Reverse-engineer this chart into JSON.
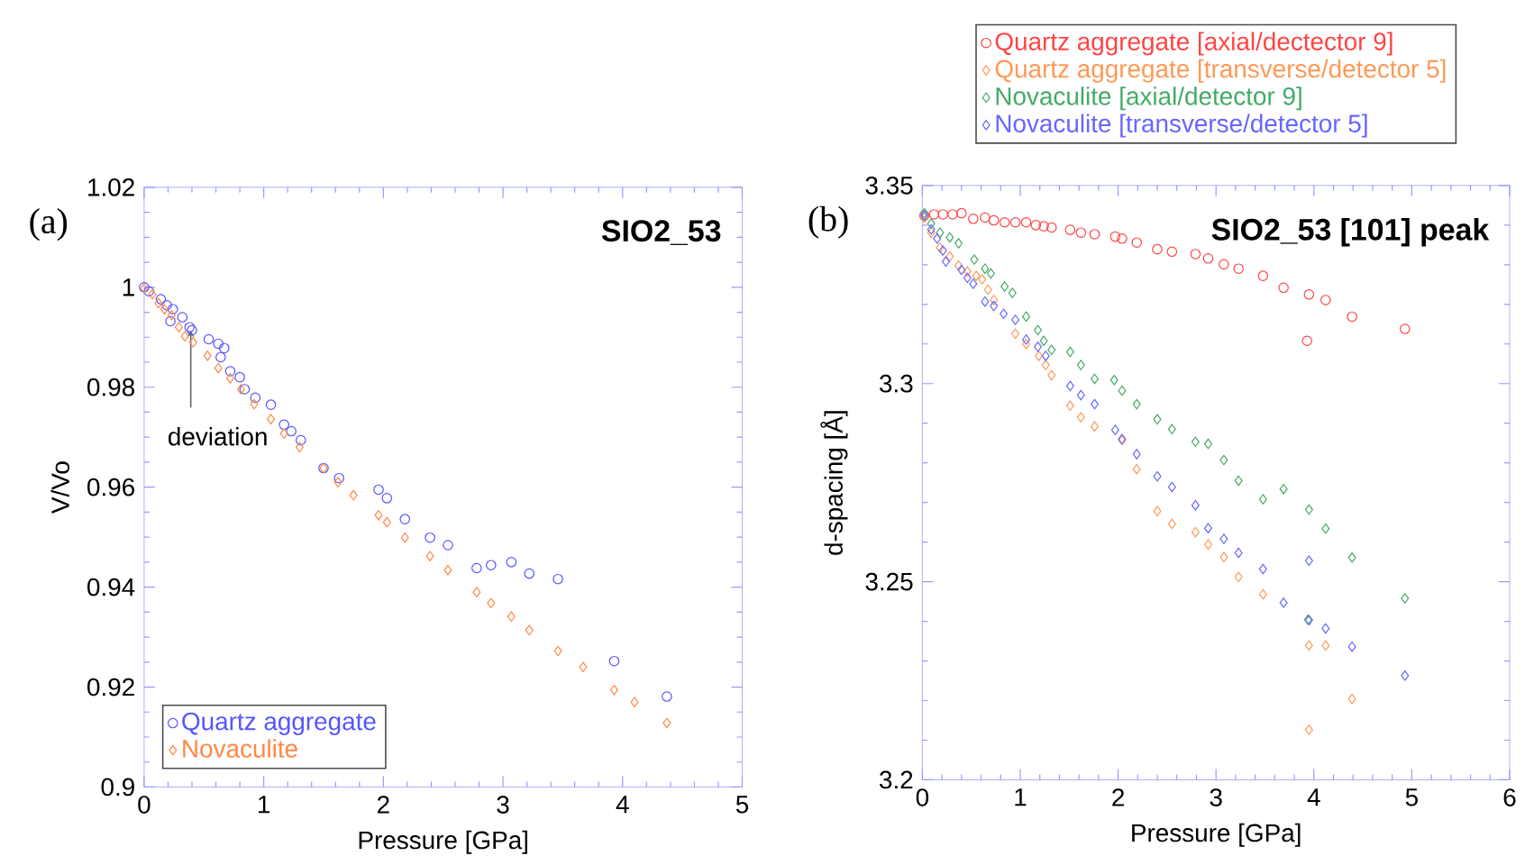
{
  "chart_data": [
    {
      "type": "scatter",
      "title": "(a)",
      "xlabel": "Pressure [GPa]",
      "ylabel": "V/Vo",
      "xlim": [
        0,
        5
      ],
      "ylim": [
        0.9,
        1.02
      ],
      "xticks": [
        0,
        1,
        2,
        3,
        4,
        5
      ],
      "yticks": [
        0.9,
        0.92,
        0.94,
        0.96,
        0.98,
        1,
        1.02
      ],
      "legend": "bottom left",
      "annotations": [
        "SIO2_53",
        {
          "text": "deviation",
          "x": 0.39,
          "y": 0.9925
        }
      ],
      "series": [
        {
          "name": "Quartz aggregate",
          "color": "#5555ff",
          "marker": "circle",
          "x": [
            0,
            0.04,
            0.14,
            0.19,
            0.24,
            0.32,
            0.22,
            0.38,
            0.4,
            0.54,
            0.62,
            0.67,
            0.64,
            0.72,
            0.8,
            0.84,
            0.93,
            1.06,
            1.17,
            1.23,
            1.31,
            1.5,
            1.63,
            1.96,
            2.03,
            2.18,
            2.39,
            2.54,
            2.78,
            2.9,
            3.07,
            3.22,
            3.46,
            3.93,
            4.37
          ],
          "values": [
            1.0,
            0.9992,
            0.9976,
            0.9964,
            0.9956,
            0.994,
            0.9932,
            0.992,
            0.9914,
            0.9896,
            0.9887,
            0.9878,
            0.986,
            0.9832,
            0.982,
            0.9796,
            0.9779,
            0.9765,
            0.9725,
            0.9712,
            0.9694,
            0.9638,
            0.9618,
            0.9595,
            0.9578,
            0.9536,
            0.9499,
            0.9484,
            0.9438,
            0.9444,
            0.945,
            0.9427,
            0.9416,
            0.9252,
            0.9181
          ]
        },
        {
          "name": "Novaculite",
          "color": "#ff8844",
          "marker": "diamond",
          "x": [
            0,
            0.07,
            0.12,
            0.17,
            0.23,
            0.29,
            0.34,
            0.41,
            0.53,
            0.62,
            0.72,
            0.81,
            0.92,
            1.06,
            1.17,
            1.3,
            1.5,
            1.62,
            1.75,
            1.96,
            2.03,
            2.18,
            2.39,
            2.54,
            2.78,
            2.9,
            3.07,
            3.22,
            3.46,
            3.67,
            3.93,
            4.1,
            4.37
          ],
          "values": [
            0.9998,
            0.9986,
            0.9968,
            0.9956,
            0.9944,
            0.992,
            0.9902,
            0.989,
            0.9863,
            0.9838,
            0.9818,
            0.9796,
            0.9766,
            0.9736,
            0.9707,
            0.968,
            0.9638,
            0.961,
            0.9584,
            0.9544,
            0.953,
            0.9499,
            0.9462,
            0.9434,
            0.939,
            0.9368,
            0.9341,
            0.9314,
            0.9272,
            0.924,
            0.9194,
            0.917,
            0.9128
          ]
        }
      ]
    },
    {
      "type": "scatter",
      "title": "(b)",
      "xlabel": "Pressure [GPa]",
      "ylabel": "d-spacing [Å]",
      "xlim": [
        0,
        6
      ],
      "ylim": [
        3.2,
        3.35
      ],
      "xticks": [
        0,
        1,
        2,
        3,
        4,
        5,
        6
      ],
      "yticks": [
        3.2,
        3.25,
        3.3,
        3.35
      ],
      "legend": "top",
      "annotations": [
        "SIO2_53 [101] peak"
      ],
      "series": [
        {
          "name": "Quartz aggregate [axial/dectector 9]",
          "color": "#ff4444",
          "marker": "circle",
          "x": [
            0.02,
            0.12,
            0.21,
            0.31,
            0.4,
            0.52,
            0.64,
            0.73,
            0.84,
            0.95,
            1.06,
            1.16,
            1.24,
            1.32,
            1.51,
            1.62,
            1.76,
            1.97,
            2.04,
            2.19,
            2.4,
            2.55,
            2.79,
            2.92,
            3.08,
            3.23,
            3.48,
            3.69,
            3.95,
            4.12,
            4.39,
            3.93,
            4.93
          ],
          "values": [
            3.3424,
            3.3427,
            3.3427,
            3.3427,
            3.343,
            3.3416,
            3.3419,
            3.3412,
            3.3407,
            3.3407,
            3.3407,
            3.34,
            3.3397,
            3.3394,
            3.3388,
            3.3381,
            3.3377,
            3.3371,
            3.3366,
            3.3356,
            3.3339,
            3.3333,
            3.3327,
            3.3316,
            3.3301,
            3.329,
            3.3272,
            3.3242,
            3.3225,
            3.3211,
            3.3169,
            3.3108,
            3.3138
          ]
        },
        {
          "name": "Quartz aggregate [transverse/detector 5]",
          "color": "#ff9955",
          "marker": "diamond",
          "x": [
            0.02,
            0.09,
            0.18,
            0.28,
            0.37,
            0.46,
            0.55,
            0.61,
            0.67,
            0.73,
            0.83,
            0.95,
            1.06,
            1.19,
            1.26,
            1.32,
            1.51,
            1.62,
            1.76,
            1.97,
            2.04,
            2.19,
            2.4,
            2.55,
            2.79,
            2.92,
            3.08,
            3.23,
            3.48,
            3.95,
            4.12,
            4.39,
            3.95
          ],
          "values": [
            3.3419,
            3.3381,
            3.3343,
            3.3321,
            3.3298,
            3.3283,
            3.3272,
            3.3263,
            3.3237,
            3.3211,
            null,
            3.3126,
            3.31,
            3.307,
            3.3047,
            3.3021,
            3.2944,
            3.2915,
            3.2892,
            null,
            3.2857,
            3.2784,
            3.2678,
            3.2646,
            3.2625,
            3.2594,
            3.2562,
            3.2512,
            3.2468,
            3.2339,
            3.2339,
            3.2204,
            3.2126
          ]
        },
        {
          "name": "Novaculite [axial/detector 9]",
          "color": "#44aa66",
          "marker": "diamond",
          "x": [
            0.02,
            0.09,
            0.18,
            0.28,
            0.37,
            0.53,
            0.64,
            0.7,
            0.84,
            0.92,
            1.06,
            1.18,
            1.24,
            1.32,
            1.51,
            1.62,
            1.76,
            1.96,
            2.04,
            2.19,
            2.4,
            2.55,
            2.79,
            2.92,
            3.08,
            3.23,
            3.48,
            3.69,
            3.95,
            4.12,
            4.39,
            4.93,
            3.94
          ],
          "values": [
            3.343,
            3.3404,
            3.3381,
            3.3369,
            3.3354,
            3.3313,
            3.329,
            3.3278,
            3.3245,
            3.3229,
            3.3169,
            3.3135,
            3.3108,
            3.3085,
            3.308,
            3.3047,
            3.3012,
            3.3009,
            3.2982,
            3.2948,
            3.291,
            3.2885,
            3.2853,
            3.2848,
            3.2807,
            3.2755,
            3.2708,
            3.2734,
            3.2682,
            3.2634,
            3.2561,
            3.2458,
            3.2404
          ]
        },
        {
          "name": "Novaculite [transverse/detector 5]",
          "color": "#6666ff",
          "marker": "diamond",
          "x": [
            0.02,
            0.09,
            0.15,
            0.21,
            0.24,
            0.4,
            0.46,
            0.52,
            0.64,
            0.73,
            0.83,
            0.95,
            1.06,
            1.18,
            1.26,
            1.51,
            1.62,
            1.76,
            1.97,
            2.04,
            2.19,
            2.4,
            2.55,
            2.79,
            2.92,
            3.08,
            3.23,
            3.48,
            3.69,
            3.95,
            3.95,
            4.12,
            4.39,
            4.93
          ],
          "values": [
            3.3424,
            3.3389,
            3.3366,
            3.3336,
            3.3308,
            3.3287,
            3.3267,
            3.3252,
            3.3207,
            3.3196,
            3.3176,
            3.3161,
            3.3111,
            3.3093,
            3.307,
            3.2994,
            3.2971,
            3.2948,
            3.2883,
            3.286,
            3.2822,
            3.2766,
            3.2739,
            3.2693,
            3.2635,
            3.2608,
            3.2573,
            3.2532,
            3.2447,
            3.2553,
            3.2403,
            3.2382,
            3.2336,
            3.2263
          ]
        }
      ]
    }
  ]
}
